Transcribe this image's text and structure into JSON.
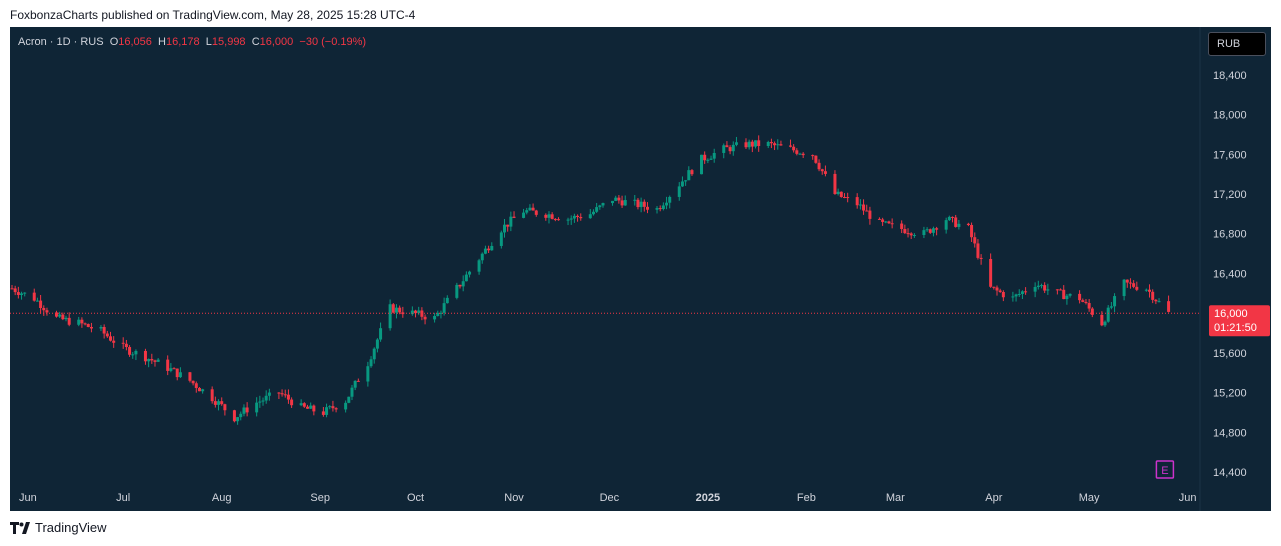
{
  "publisher_line": "FoxbonzaCharts published on TradingView.com, May 28, 2025 15:28 UTC-4",
  "legend": {
    "symbol": "Acron · 1D · RUS",
    "o_label": "O",
    "o_value": "16,056",
    "h_label": "H",
    "h_value": "16,178",
    "l_label": "L",
    "l_value": "15,998",
    "c_label": "C",
    "c_value": "16,000",
    "change": "−30 (−0.19%)"
  },
  "currency_button": "RUB",
  "footer_brand": "TradingView",
  "colors": {
    "background": "#0f2536",
    "up": "#089981",
    "down": "#f23645",
    "axis_text": "#d1d4dc",
    "earnings_marker": "#cc33cc"
  },
  "chart_data": {
    "type": "candlestick",
    "title": "Acron · 1D · RUS",
    "ylabel": "RUB",
    "ylim": [
      14200,
      18700
    ],
    "xlim": [
      "2024-05-27",
      "2025-06-03"
    ],
    "y_ticks": [
      "18,400",
      "18,000",
      "17,600",
      "17,200",
      "16,800",
      "16,400",
      "16,000",
      "15,600",
      "15,200",
      "14,800",
      "14,400"
    ],
    "y_tick_values": [
      18400,
      18000,
      17600,
      17200,
      16800,
      16400,
      16000,
      15600,
      15200,
      14800,
      14400
    ],
    "x_ticks": [
      "Jun",
      "Jul",
      "Aug",
      "Sep",
      "Oct",
      "Nov",
      "Dec",
      "2025",
      "Feb",
      "Mar",
      "Apr",
      "May",
      "Jun"
    ],
    "x_tick_dates": [
      "2024-06-01",
      "2024-07-01",
      "2024-08-01",
      "2024-09-01",
      "2024-10-01",
      "2024-11-01",
      "2024-12-01",
      "2025-01-01",
      "2025-02-01",
      "2025-03-01",
      "2025-04-01",
      "2025-05-01",
      "2025-06-01"
    ],
    "last_price": 16000,
    "last_price_label": "16,000",
    "countdown": "01:21:50",
    "earnings_marker": {
      "label": "E",
      "date": "2025-05-25"
    },
    "series_closes": [
      {
        "date": "2024-05-27",
        "close": 16250
      },
      {
        "date": "2024-06-03",
        "close": 16150
      },
      {
        "date": "2024-06-10",
        "close": 15950
      },
      {
        "date": "2024-06-17",
        "close": 15900
      },
      {
        "date": "2024-06-24",
        "close": 15820
      },
      {
        "date": "2024-07-01",
        "close": 15650
      },
      {
        "date": "2024-07-08",
        "close": 15560
      },
      {
        "date": "2024-07-15",
        "close": 15450
      },
      {
        "date": "2024-07-22",
        "close": 15320
      },
      {
        "date": "2024-07-29",
        "close": 15150
      },
      {
        "date": "2024-08-05",
        "close": 14950
      },
      {
        "date": "2024-08-12",
        "close": 15100
      },
      {
        "date": "2024-08-19",
        "close": 15200
      },
      {
        "date": "2024-08-26",
        "close": 15050
      },
      {
        "date": "2024-09-02",
        "close": 15000
      },
      {
        "date": "2024-09-09",
        "close": 15120
      },
      {
        "date": "2024-09-16",
        "close": 15500
      },
      {
        "date": "2024-09-23",
        "close": 16050
      },
      {
        "date": "2024-09-30",
        "close": 16000
      },
      {
        "date": "2024-10-07",
        "close": 15950
      },
      {
        "date": "2024-10-14",
        "close": 16250
      },
      {
        "date": "2024-10-21",
        "close": 16550
      },
      {
        "date": "2024-10-28",
        "close": 16850
      },
      {
        "date": "2024-11-04",
        "close": 17030
      },
      {
        "date": "2024-11-11",
        "close": 17000
      },
      {
        "date": "2024-11-18",
        "close": 16950
      },
      {
        "date": "2024-11-25",
        "close": 17000
      },
      {
        "date": "2024-12-02",
        "close": 17150
      },
      {
        "date": "2024-12-09",
        "close": 17100
      },
      {
        "date": "2024-12-16",
        "close": 17050
      },
      {
        "date": "2024-12-23",
        "close": 17300
      },
      {
        "date": "2024-12-30",
        "close": 17550
      },
      {
        "date": "2025-01-06",
        "close": 17650
      },
      {
        "date": "2025-01-13",
        "close": 17700
      },
      {
        "date": "2025-01-20",
        "close": 17700
      },
      {
        "date": "2025-01-27",
        "close": 17650
      },
      {
        "date": "2025-02-03",
        "close": 17600
      },
      {
        "date": "2025-02-10",
        "close": 17200
      },
      {
        "date": "2025-02-17",
        "close": 17100
      },
      {
        "date": "2025-02-24",
        "close": 16900
      },
      {
        "date": "2025-03-03",
        "close": 16850
      },
      {
        "date": "2025-03-10",
        "close": 16800
      },
      {
        "date": "2025-03-17",
        "close": 16950
      },
      {
        "date": "2025-03-24",
        "close": 16850
      },
      {
        "date": "2025-03-31",
        "close": 16250
      },
      {
        "date": "2025-04-07",
        "close": 16150
      },
      {
        "date": "2025-04-14",
        "close": 16300
      },
      {
        "date": "2025-04-21",
        "close": 16200
      },
      {
        "date": "2025-04-28",
        "close": 16150
      },
      {
        "date": "2025-05-05",
        "close": 15900
      },
      {
        "date": "2025-05-12",
        "close": 16300
      },
      {
        "date": "2025-05-19",
        "close": 16250
      },
      {
        "date": "2025-05-26",
        "close": 16000
      }
    ]
  }
}
